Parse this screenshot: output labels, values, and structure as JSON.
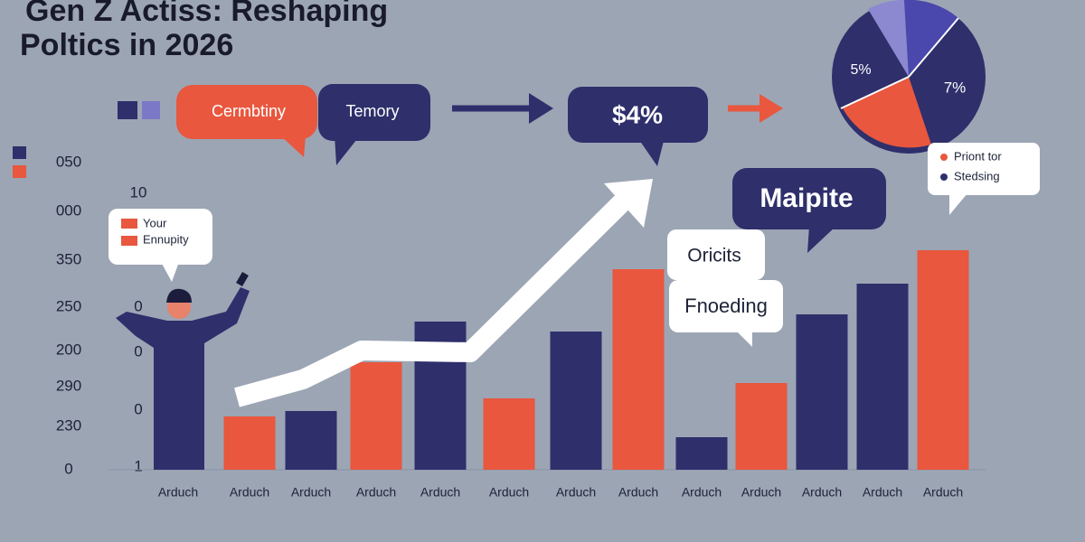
{
  "chart_data": {
    "type": "bar",
    "title_lines": [
      "Gen Z Actiss: Reshaping",
      "Poltics in 2026"
    ],
    "categories": [
      "Arduch",
      "Arduch",
      "Arduch",
      "Arduch",
      "Arduch",
      "Arduch",
      "Arduch",
      "Arduch",
      "Arduch",
      "Arduch",
      "Arduch",
      "Arduch",
      "Arduch"
    ],
    "values": [
      null,
      59,
      65,
      119,
      164,
      79,
      153,
      222,
      36,
      96,
      172,
      206,
      243
    ],
    "colors": [
      "#2e2f6b",
      "#e8573e",
      "#2e2f6b",
      "#e8573e",
      "#2e2f6b",
      "#e8573e",
      "#2e2f6b",
      "#e8573e",
      "#2e2f6b",
      "#e8573e",
      "#2e2f6b",
      "#2e2f6b",
      "#e8573e"
    ],
    "ylim": [
      0,
      350
    ],
    "axis_labels": [
      "050",
      "000",
      "350",
      "250",
      "200",
      "290",
      "230",
      "0"
    ],
    "inner_axis_labels": [
      "10",
      "0",
      "0",
      "0",
      "1"
    ]
  },
  "callouts": {
    "flow": [
      "Cermbtiny",
      "Temory",
      "$4%"
    ],
    "highlight": "Maipite",
    "notes": [
      "Oricits",
      "Fnoeding"
    ],
    "person_legend": [
      "Your",
      "Ennupity"
    ]
  },
  "pie": {
    "labels": [
      "5%",
      "7%"
    ],
    "legend": [
      "Priont tor",
      "Stedsing"
    ]
  }
}
